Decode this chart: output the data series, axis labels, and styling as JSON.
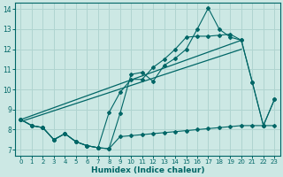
{
  "xlabel": "Humidex (Indice chaleur)",
  "background_color": "#cce8e4",
  "grid_color": "#b0d4d0",
  "line_color": "#006666",
  "xlim": [
    -0.5,
    23.5
  ],
  "ylim": [
    6.7,
    14.3
  ],
  "yticks": [
    7,
    8,
    9,
    10,
    11,
    12,
    13,
    14
  ],
  "xticks": [
    0,
    1,
    2,
    3,
    4,
    5,
    6,
    7,
    8,
    9,
    10,
    11,
    12,
    13,
    14,
    15,
    16,
    17,
    18,
    19,
    20,
    21,
    22,
    23
  ],
  "series1_x": [
    0,
    1,
    2,
    3,
    4,
    5,
    6,
    7,
    8,
    9,
    10,
    11,
    12,
    13,
    14,
    15,
    16,
    17,
    18,
    19,
    20,
    21,
    22,
    23
  ],
  "series1_y": [
    8.5,
    8.2,
    8.1,
    7.5,
    7.8,
    7.4,
    7.2,
    7.1,
    7.05,
    8.8,
    10.75,
    10.85,
    10.4,
    11.2,
    11.55,
    12.0,
    13.0,
    14.05,
    13.0,
    12.6,
    12.45,
    10.35,
    8.2,
    9.5
  ],
  "series2_x": [
    0,
    1,
    2,
    3,
    4,
    5,
    6,
    7,
    8,
    9,
    10,
    11,
    12,
    13,
    14,
    15,
    16,
    17,
    18,
    19,
    20,
    21,
    22,
    23
  ],
  "series2_y": [
    8.5,
    8.2,
    8.1,
    7.5,
    7.8,
    7.4,
    7.2,
    7.1,
    8.85,
    9.85,
    10.5,
    10.5,
    11.1,
    11.5,
    12.0,
    12.6,
    12.65,
    12.65,
    12.7,
    12.75,
    12.45,
    10.35,
    8.2,
    9.5
  ],
  "trend1_x": [
    0,
    20
  ],
  "trend1_y": [
    8.5,
    12.45
  ],
  "trend2_x": [
    0,
    20
  ],
  "trend2_y": [
    8.4,
    12.0
  ],
  "series3_x": [
    0,
    1,
    2,
    3,
    4,
    5,
    6,
    7,
    8,
    9,
    10,
    11,
    12,
    13,
    14,
    15,
    16,
    17,
    18,
    19,
    20,
    21,
    22,
    23
  ],
  "series3_y": [
    8.5,
    8.2,
    8.1,
    7.5,
    7.8,
    7.4,
    7.2,
    7.1,
    7.05,
    7.65,
    7.7,
    7.75,
    7.8,
    7.85,
    7.9,
    7.95,
    8.0,
    8.05,
    8.1,
    8.15,
    8.2,
    8.2,
    8.2,
    8.2
  ]
}
